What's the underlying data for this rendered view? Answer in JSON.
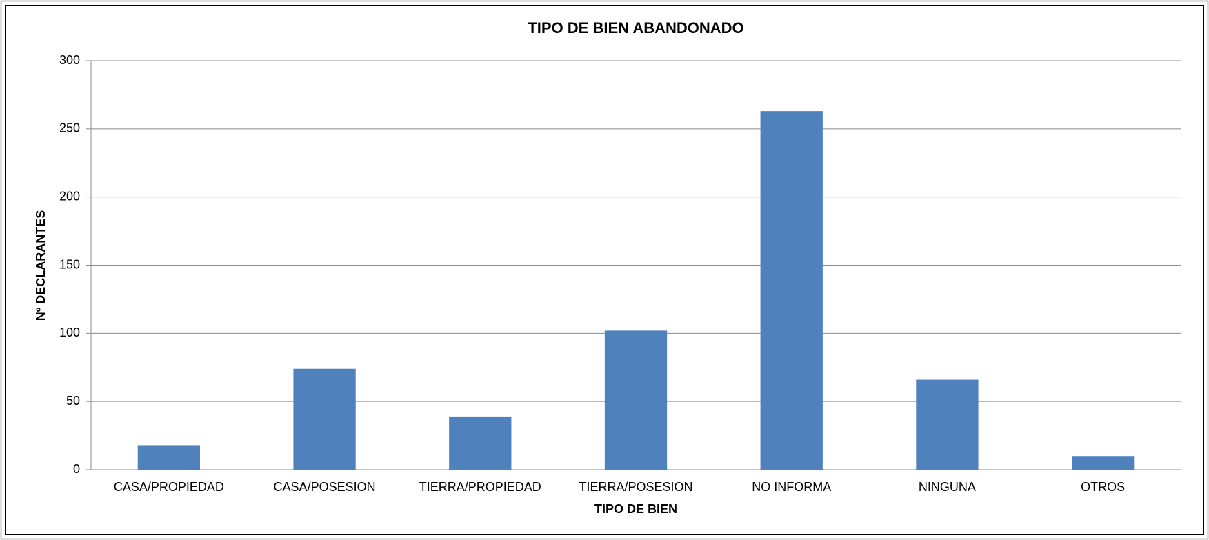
{
  "chart_data": {
    "type": "bar",
    "title": "TIPO DE BIEN ABANDONADO",
    "x_label": "TIPO DE BIEN",
    "y_label": "Nº DECLARANTES",
    "categories": [
      "CASA/PROPIEDAD",
      "CASA/POSESION",
      "TIERRA/PROPIEDAD",
      "TIERRA/POSESION",
      "NO INFORMA",
      "NINGUNA",
      "OTROS"
    ],
    "values": [
      18,
      74,
      39,
      102,
      263,
      66,
      10
    ],
    "color": "#4f81bd",
    "ylim": [
      0,
      300
    ],
    "yticks": [
      0,
      50,
      100,
      150,
      200,
      250,
      300
    ],
    "grid": true
  }
}
